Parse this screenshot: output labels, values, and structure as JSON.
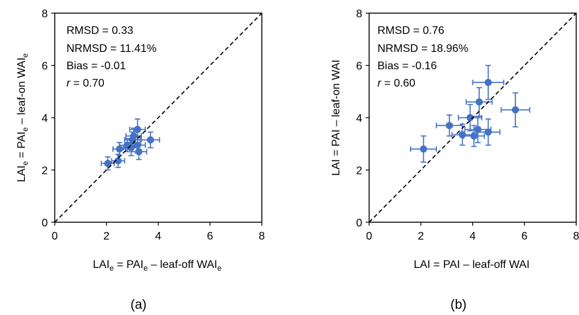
{
  "colors": {
    "marker": "#4472C4",
    "axis": "#000000"
  },
  "chart_data": [
    {
      "type": "scatter",
      "panel_label": "(a)",
      "xlim": [
        0,
        8
      ],
      "ylim": [
        0,
        8
      ],
      "xticks": [
        "0",
        "2",
        "4",
        "6",
        "8"
      ],
      "yticks": [
        "0",
        "2",
        "4",
        "6",
        "8"
      ],
      "xlabel": {
        "a": "LAI",
        "b": "e",
        "c": " = PAI",
        "d": "e",
        "e": " – leaf-off WAI",
        "f": "e"
      },
      "ylabel": {
        "a": "LAI",
        "b": "e",
        "c": " = PAI",
        "d": "e",
        "e": " – leaf-on WAI",
        "f": "e"
      },
      "stats": [
        {
          "label": "RMSD",
          "value": " = 0.33"
        },
        {
          "label": "NRMSD",
          "value": " = 11.41%"
        },
        {
          "label": "Bias",
          "value": " = -0.01"
        },
        {
          "label": "r",
          "value": " 0.70"
        }
      ],
      "identity_line": true,
      "points": [
        {
          "x": 2.05,
          "y": 2.25,
          "xerr": 0.25,
          "yerr": 0.25
        },
        {
          "x": 2.45,
          "y": 2.35,
          "xerr": 0.25,
          "yerr": 0.25
        },
        {
          "x": 2.5,
          "y": 2.8,
          "xerr": 0.25,
          "yerr": 0.25
        },
        {
          "x": 2.8,
          "y": 2.95,
          "xerr": 0.3,
          "yerr": 0.25
        },
        {
          "x": 2.95,
          "y": 2.85,
          "xerr": 0.3,
          "yerr": 0.3
        },
        {
          "x": 3.0,
          "y": 3.15,
          "xerr": 0.3,
          "yerr": 0.3
        },
        {
          "x": 3.05,
          "y": 3.3,
          "xerr": 0.3,
          "yerr": 0.3
        },
        {
          "x": 3.2,
          "y": 3.55,
          "xerr": 0.3,
          "yerr": 0.4
        },
        {
          "x": 3.2,
          "y": 2.95,
          "xerr": 0.3,
          "yerr": 0.3
        },
        {
          "x": 3.25,
          "y": 2.7,
          "xerr": 0.3,
          "yerr": 0.3
        },
        {
          "x": 3.7,
          "y": 3.15,
          "xerr": 0.35,
          "yerr": 0.3
        }
      ]
    },
    {
      "type": "scatter",
      "panel_label": "(b)",
      "xlim": [
        0,
        8
      ],
      "ylim": [
        0,
        8
      ],
      "xticks": [
        "0",
        "2",
        "4",
        "6",
        "8"
      ],
      "yticks": [
        "0",
        "2",
        "4",
        "6",
        "8"
      ],
      "xlabel": {
        "a": "LAI = PAI – leaf-off WAI"
      },
      "ylabel": {
        "a": "LAI = PAI – leaf-on WAI"
      },
      "stats": [
        {
          "label": "RMSD",
          "value": " = 0.76"
        },
        {
          "label": "NRMSD",
          "value": " = 18.96%"
        },
        {
          "label": "Bias",
          "value": " = -0.16"
        },
        {
          "label": "r",
          "value": " 0.60"
        }
      ],
      "identity_line": true,
      "points": [
        {
          "x": 2.1,
          "y": 2.8,
          "xerr": 0.5,
          "yerr": 0.5
        },
        {
          "x": 3.1,
          "y": 3.7,
          "xerr": 0.5,
          "yerr": 0.4
        },
        {
          "x": 3.6,
          "y": 3.35,
          "xerr": 0.4,
          "yerr": 0.4
        },
        {
          "x": 3.9,
          "y": 4.0,
          "xerr": 0.45,
          "yerr": 0.5
        },
        {
          "x": 4.05,
          "y": 3.3,
          "xerr": 0.4,
          "yerr": 0.4
        },
        {
          "x": 4.2,
          "y": 3.55,
          "xerr": 0.5,
          "yerr": 0.5
        },
        {
          "x": 4.25,
          "y": 4.6,
          "xerr": 0.5,
          "yerr": 0.55
        },
        {
          "x": 4.6,
          "y": 5.35,
          "xerr": 0.6,
          "yerr": 0.65
        },
        {
          "x": 4.6,
          "y": 3.45,
          "xerr": 0.45,
          "yerr": 0.5
        },
        {
          "x": 5.65,
          "y": 4.3,
          "xerr": 0.55,
          "yerr": 0.65
        }
      ]
    }
  ]
}
